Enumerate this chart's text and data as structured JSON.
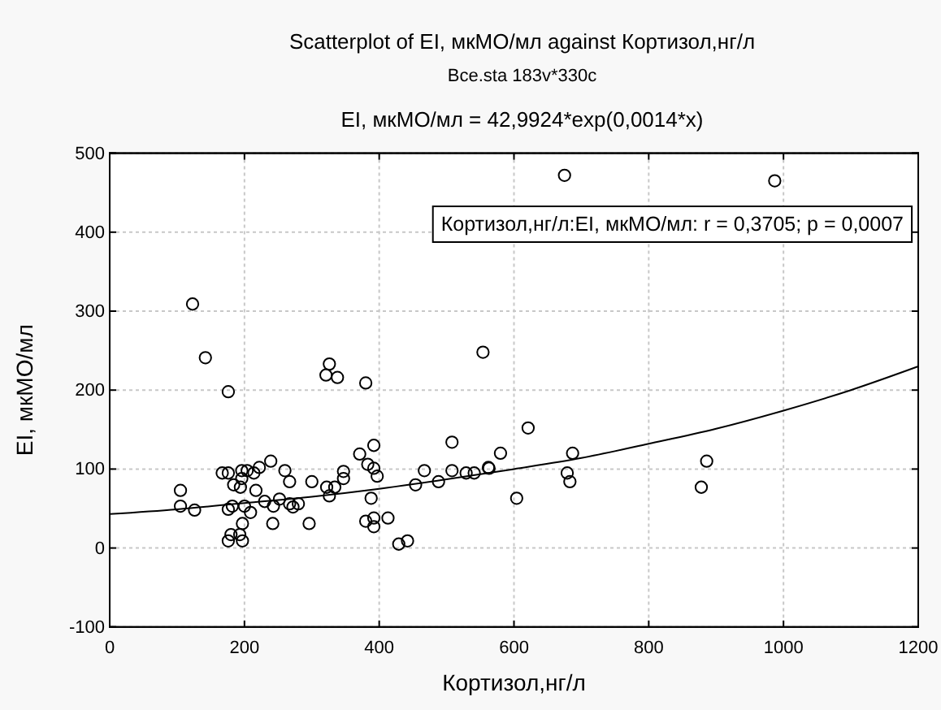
{
  "chart_data": {
    "type": "scatter",
    "title": "Scatterplot of EI, мкМО/мл against Кортизол,нг/л",
    "subtitle": "Bce.sta 183v*330c",
    "xlabel": "Кортизол,нг/л",
    "ylabel": "EI, мкМО/мл",
    "annotations": [
      "EI, мкМО/мл = 42,9924*exp(0,0014*x)",
      "Кортизол,нг/л:EI, мкМО/мл:  r = 0,3705; p = 0,0007"
    ],
    "xlim": [
      0,
      1200
    ],
    "xticks": [
      0,
      200,
      400,
      600,
      800,
      1000,
      1200
    ],
    "ylim": [
      -100,
      500
    ],
    "yticks": [
      -100,
      0,
      100,
      200,
      300,
      400,
      500
    ],
    "grid": true,
    "marker": "circle",
    "series": [
      {
        "type": "scatter",
        "color": "#000000",
        "x": [
          123,
          142,
          176,
          326,
          321,
          338,
          380,
          554,
          675,
          987,
          621,
          580,
          687,
          679,
          683,
          886,
          878,
          604,
          563,
          508,
          467,
          508,
          529,
          541,
          562,
          454,
          488,
          442,
          105,
          105,
          126,
          167,
          176,
          184,
          194,
          196,
          196,
          204,
          214,
          222,
          239,
          260,
          267,
          217,
          176,
          182,
          200,
          209,
          230,
          243,
          252,
          267,
          280,
          272,
          300,
          322,
          334,
          326,
          347,
          347,
          371,
          383,
          392,
          392,
          397,
          388,
          197,
          242,
          296,
          380,
          392,
          392,
          413,
          180,
          193,
          176,
          197,
          429
        ],
        "values": [
          309,
          241,
          198,
          233,
          219,
          216,
          209,
          248,
          472,
          465,
          152,
          120,
          120,
          95,
          84,
          110,
          77,
          63,
          101,
          134,
          98,
          98,
          95,
          95,
          102,
          80,
          84,
          9,
          73,
          53,
          48,
          95,
          95,
          80,
          77,
          88,
          98,
          98,
          95,
          102,
          110,
          98,
          84,
          73,
          49,
          53,
          53,
          45,
          59,
          53,
          62,
          56,
          56,
          52,
          84,
          77,
          77,
          66,
          97,
          88,
          119,
          106,
          130,
          101,
          91,
          63,
          31,
          31,
          31,
          34,
          38,
          27,
          38,
          17,
          17,
          9,
          9,
          5
        ]
      },
      {
        "type": "line",
        "color": "#000000",
        "marker": "none",
        "x": [
          0,
          100,
          200,
          300,
          400,
          500,
          600,
          700,
          800,
          900,
          1000,
          1100,
          1200
        ],
        "values": [
          43,
          49,
          57,
          65,
          75,
          87,
          100,
          114,
          132,
          151,
          174,
          200,
          230
        ]
      }
    ]
  }
}
